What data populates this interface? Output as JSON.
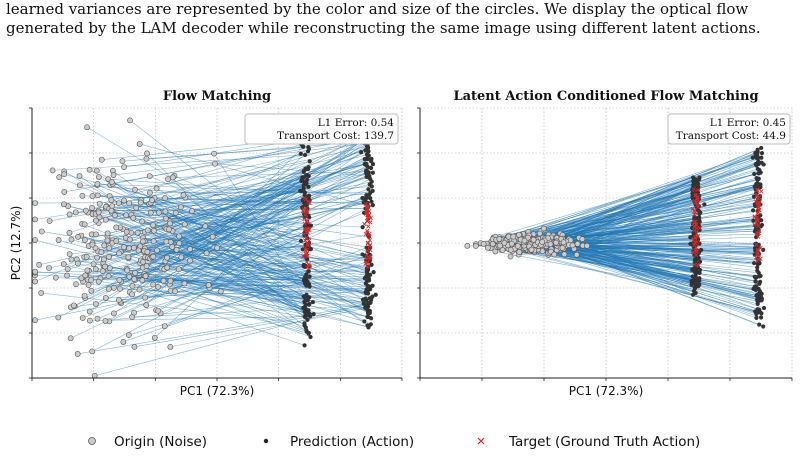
{
  "caption": {
    "line1": "learned variances are represented by the color and size of the circles. We display the optical flow",
    "line2": "generated by the LAM decoder while reconstructing the same image using different latent actions."
  },
  "colors": {
    "line": "#1f77b4",
    "origin_fill": "#cccccc",
    "origin_edge": "#555555",
    "prediction": "#333333",
    "target": "#d62728",
    "grid": "#b0b0b0"
  },
  "chart_data": [
    {
      "type": "scatter",
      "title": "Flow Matching",
      "xlabel": "PC1 (72.3%)",
      "ylabel": "PC2 (12.7%)",
      "grid": true,
      "annotation": {
        "line1": "L1 Error: 0.54",
        "line2": "Transport Cost: 139.7"
      },
      "xlim": [
        -3.0,
        3.0
      ],
      "ylim": [
        -3.0,
        3.0
      ],
      "series": [
        {
          "name": "Origin (Noise)",
          "marker": "circle",
          "distribution": {
            "center_x": -1.55,
            "spread_x": 0.65,
            "center_y": 0.0,
            "spread_y": 1.0
          }
        },
        {
          "name": "Prediction (Action)",
          "marker": "dot",
          "clusters": [
            {
              "x": 1.45,
              "y_range": [
                -2.3,
                2.2
              ]
            },
            {
              "x": 2.45,
              "y_range": [
                -1.9,
                2.6
              ]
            }
          ]
        },
        {
          "name": "Target (Ground Truth Action)",
          "marker": "x",
          "clusters": [
            {
              "x": 1.45,
              "y_range": [
                -0.6,
                1.0
              ]
            },
            {
              "x": 2.45,
              "y_range": [
                -0.6,
                0.9
              ]
            }
          ]
        }
      ]
    },
    {
      "type": "scatter",
      "title": "Latent Action Conditioned Flow Matching",
      "xlabel": "PC1 (72.3%)",
      "ylabel": "",
      "grid": true,
      "annotation": {
        "line1": "L1 Error: 0.45",
        "line2": "Transport Cost: 44.9"
      },
      "xlim": [
        -3.0,
        3.0
      ],
      "ylim": [
        -3.0,
        3.0
      ],
      "series": [
        {
          "name": "Origin (Noise)",
          "marker": "circle",
          "distribution": {
            "center_x": -1.3,
            "spread_x": 0.35,
            "center_y": 0.0,
            "spread_y": 0.1
          }
        },
        {
          "name": "Prediction (Action)",
          "marker": "dot",
          "clusters": [
            {
              "x": 1.45,
              "y_range": [
                -1.2,
                1.5
              ]
            },
            {
              "x": 2.45,
              "y_range": [
                -1.9,
                2.3
              ]
            }
          ]
        },
        {
          "name": "Target (Ground Truth Action)",
          "marker": "x",
          "clusters": [
            {
              "x": 1.45,
              "y_range": [
                -0.5,
                1.2
              ]
            },
            {
              "x": 2.45,
              "y_range": [
                -0.4,
                1.3
              ]
            }
          ]
        }
      ]
    }
  ],
  "legend": {
    "position": "bottom-center",
    "items": [
      {
        "label": "Origin (Noise)",
        "marker": "circle"
      },
      {
        "label": "Prediction (Action)",
        "marker": "dot"
      },
      {
        "label": "Target (Ground Truth Action)",
        "marker": "x"
      }
    ]
  }
}
